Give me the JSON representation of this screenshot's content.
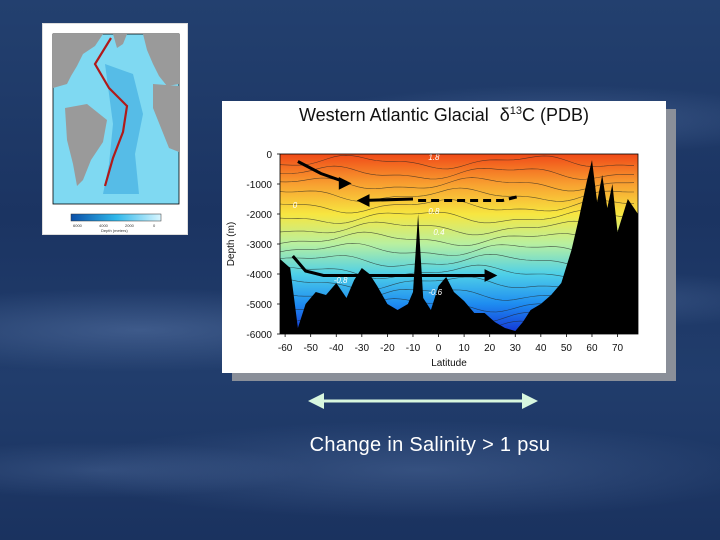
{
  "slide": {
    "caption": "Change in Salinity > 1 psu",
    "double_arrow_color": "#d8f7df"
  },
  "inset_map": {
    "colorbar_ticks": [
      "6000",
      "4000",
      "2000",
      "0"
    ],
    "colorbar_label": "Depth (meters)"
  },
  "chart_data": {
    "type": "heatmap",
    "title_prefix": "Western Atlantic Glacial",
    "title_symbol": "δ",
    "title_superscript": "13",
    "title_suffix": "C (PDB)",
    "xlabel": "Latitude",
    "ylabel": "Depth (m)",
    "x_ticks": [
      -60,
      -50,
      -40,
      -30,
      -20,
      -10,
      0,
      10,
      20,
      30,
      40,
      50,
      60,
      70
    ],
    "y_ticks": [
      0,
      -1000,
      -2000,
      -3000,
      -4000,
      -5000,
      -6000
    ],
    "xlim": [
      -62,
      78
    ],
    "ylim": [
      -6000,
      0
    ],
    "contour_labels": [
      {
        "text": "1.8",
        "lat": -4,
        "depth": -200
      },
      {
        "text": "0",
        "lat": -57,
        "depth": -1800
      },
      {
        "text": "0.8",
        "lat": -4,
        "depth": -2000
      },
      {
        "text": "0.4",
        "lat": -2,
        "depth": -2700
      },
      {
        "text": "-0.8",
        "lat": -41,
        "depth": -4300
      },
      {
        "text": "-0.6",
        "lat": -4,
        "depth": -4700
      }
    ],
    "colormap": [
      "#1432d6",
      "#1e8cf0",
      "#4fd0e8",
      "#b8f0a0",
      "#f7e640",
      "#f8a030",
      "#f04a18"
    ]
  }
}
